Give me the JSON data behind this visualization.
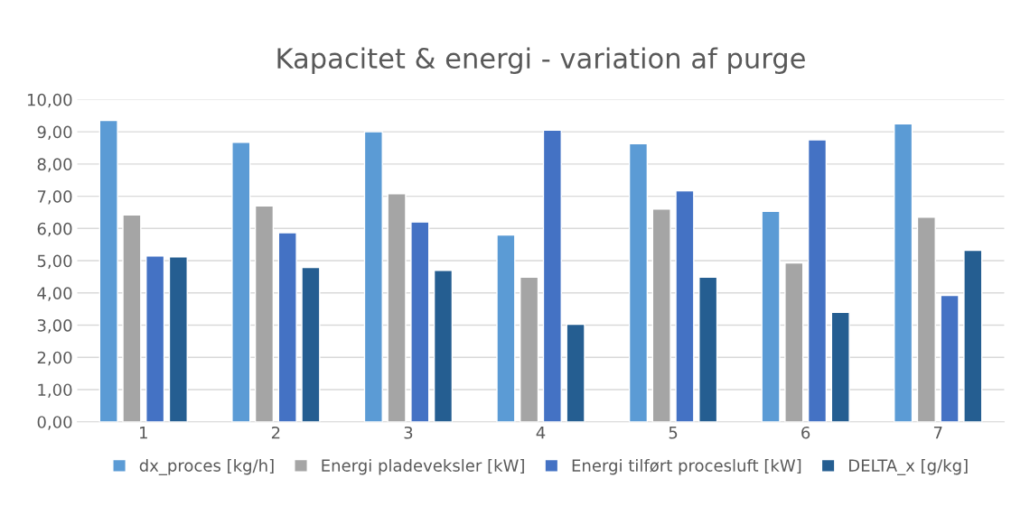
{
  "chart_data": {
    "type": "bar",
    "title": "Kapacitet & energi - variation af purge",
    "categories": [
      "1",
      "2",
      "3",
      "4",
      "5",
      "6",
      "7"
    ],
    "series": [
      {
        "name": "dx_proces [kg/h]",
        "color": "#5b9bd5",
        "values": [
          9.35,
          8.67,
          9.0,
          5.8,
          8.63,
          6.53,
          9.25
        ]
      },
      {
        "name": "Energi pladeveksler [kW]",
        "color": "#a5a5a5",
        "values": [
          6.42,
          6.7,
          7.08,
          4.49,
          6.6,
          4.93,
          6.35
        ]
      },
      {
        "name": "Energi tilført procesluft [kW]",
        "color": "#4472c4",
        "values": [
          5.15,
          5.87,
          6.2,
          9.05,
          7.17,
          8.75,
          3.92
        ]
      },
      {
        "name": "DELTA_x [g/kg]",
        "color": "#255e91",
        "values": [
          5.12,
          4.79,
          4.7,
          3.03,
          4.49,
          3.4,
          5.32
        ]
      }
    ],
    "ylim": [
      0,
      10
    ],
    "yticks": [
      {
        "value": 0,
        "label": "0,00"
      },
      {
        "value": 1,
        "label": "1,00"
      },
      {
        "value": 2,
        "label": "2,00"
      },
      {
        "value": 3,
        "label": "3,00"
      },
      {
        "value": 4,
        "label": "4,00"
      },
      {
        "value": 5,
        "label": "5,00"
      },
      {
        "value": 6,
        "label": "6,00"
      },
      {
        "value": 7,
        "label": "7,00"
      },
      {
        "value": 8,
        "label": "8,00"
      },
      {
        "value": 9,
        "label": "9,00"
      },
      {
        "value": 10,
        "label": "10,00"
      }
    ],
    "grid": "y",
    "legend": "bottom"
  }
}
